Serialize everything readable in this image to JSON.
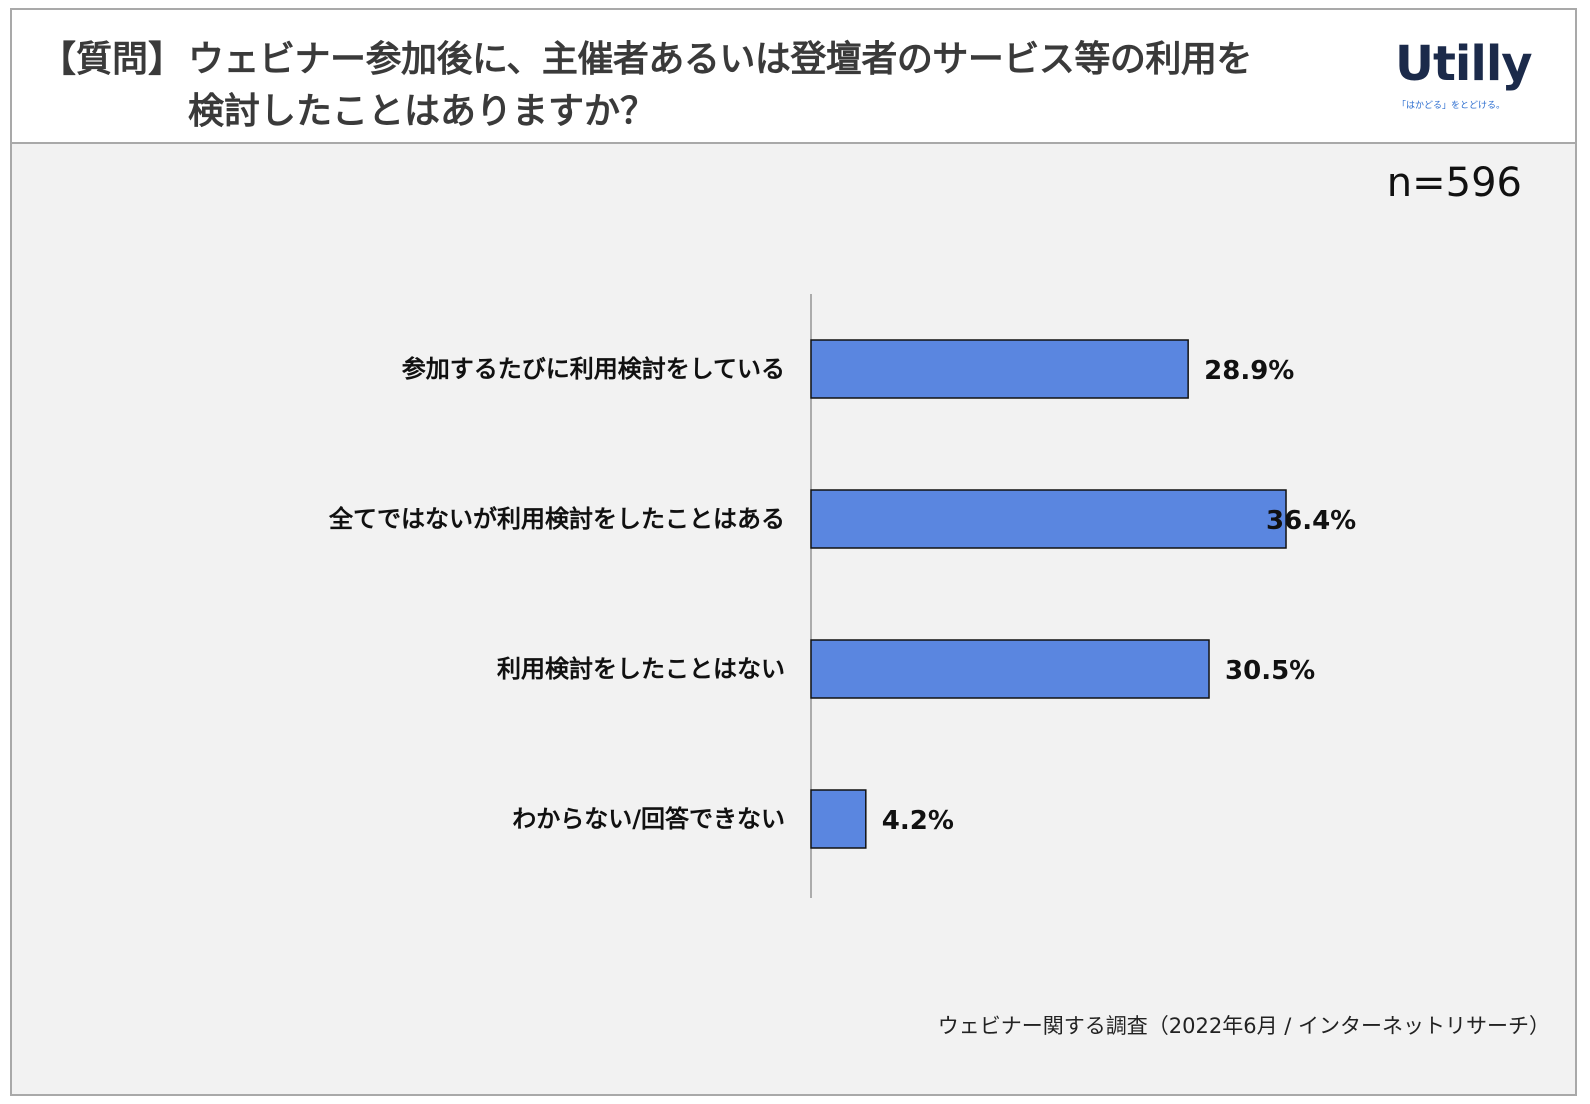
{
  "header": {
    "question_prefix": "【質問】",
    "question_line1": "ウェビナー参加後に、主催者あるいは登壇者のサービス等の利用を",
    "question_line2": "検討したことはありますか？"
  },
  "logo": {
    "word": "Utilly",
    "tagline": "「はかどる」をとどける。",
    "color": "#1b2a4a",
    "accent": "#2e6fd0"
  },
  "sample": {
    "label": "n=596"
  },
  "source": "ウェビナー関する調査（2022年6月 / インターネットリサーチ）",
  "chart_data": {
    "type": "bar",
    "orientation": "horizontal",
    "categories": [
      "参加するたびに利用検討をしている",
      "全てではないが利用検討をしたことはある",
      "利用検討をしたことはない",
      "わからない/回答できない"
    ],
    "values": [
      28.9,
      36.4,
      30.5,
      4.2
    ],
    "value_labels": [
      "28.9%",
      "36.4%",
      "30.5%",
      "4.2%"
    ],
    "unit": "%",
    "xlim": [
      0,
      60
    ],
    "bar_color": "#5a86e0",
    "bar_border": "#111111",
    "grid": false,
    "legend": "none"
  }
}
